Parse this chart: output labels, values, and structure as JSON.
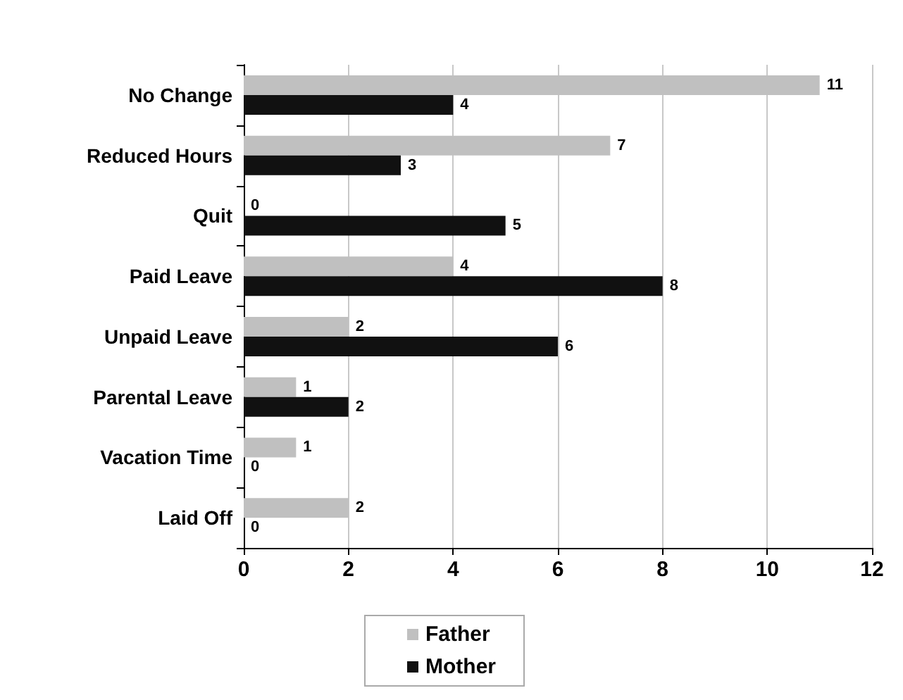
{
  "chart_data": {
    "type": "bar",
    "orientation": "horizontal",
    "categories": [
      "No Change",
      "Reduced Hours",
      "Quit",
      "Paid Leave",
      "Unpaid Leave",
      "Parental Leave",
      "Vacation Time",
      "Laid Off"
    ],
    "series": [
      {
        "name": "Father",
        "color": "#c0c0c0",
        "values": [
          11,
          7,
          0,
          4,
          2,
          1,
          1,
          2
        ]
      },
      {
        "name": "Mother",
        "color": "#111111",
        "values": [
          4,
          3,
          5,
          8,
          6,
          2,
          0,
          0
        ]
      }
    ],
    "xlim": [
      0,
      12
    ],
    "xticks": [
      0,
      2,
      4,
      6,
      8,
      10,
      12
    ],
    "grid": "x",
    "legend": "bottom",
    "data_labels": true
  }
}
